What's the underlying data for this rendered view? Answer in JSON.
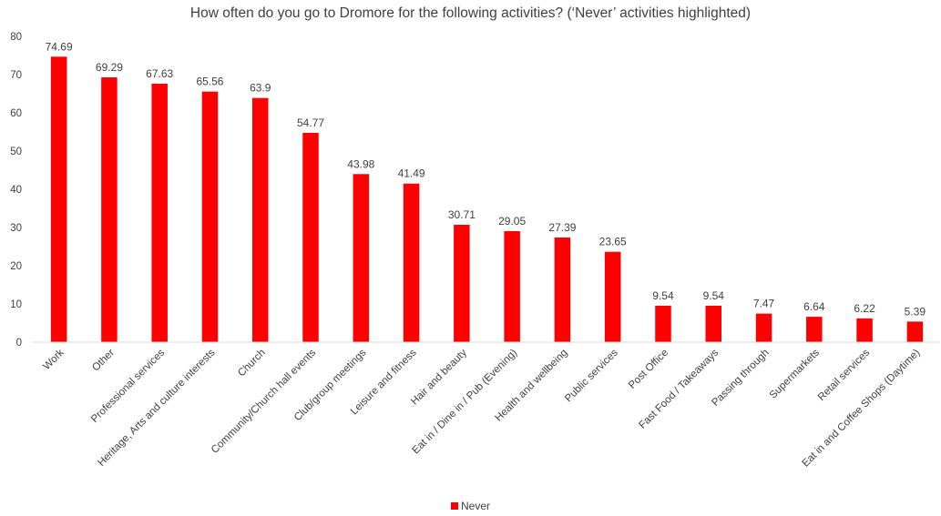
{
  "chart_data": {
    "type": "bar",
    "title": "How often do you go to Dromore for the following activities? (‘Never’ activities highlighted)",
    "categories": [
      "Work",
      "Other",
      "Professional services",
      "Heritage, Arts and culture interests",
      "Church",
      "Community/Church hall events",
      "Club/group meetings",
      "Leisure and fitness",
      "Hair and beauty",
      "Eat in / Dine in / Pub (Evening)",
      "Health and wellbeing",
      "Public services",
      "Post Office",
      "Fast Food / Takeaways",
      "Passing through",
      "Supermarkets",
      "Retail services",
      "Eat in and Coffee Shops (Daytime)"
    ],
    "series": [
      {
        "name": "Never",
        "color": "#ff0000",
        "values": [
          74.69,
          69.29,
          67.63,
          65.56,
          63.9,
          54.77,
          43.98,
          41.49,
          30.71,
          29.05,
          27.39,
          23.65,
          9.54,
          9.54,
          7.47,
          6.64,
          6.22,
          5.39
        ]
      }
    ],
    "ylim": [
      0,
      80
    ],
    "yticks": [
      0,
      10,
      20,
      30,
      40,
      50,
      60,
      70,
      80
    ],
    "grid": false,
    "legend": "bottom-center",
    "data_labels": true
  }
}
